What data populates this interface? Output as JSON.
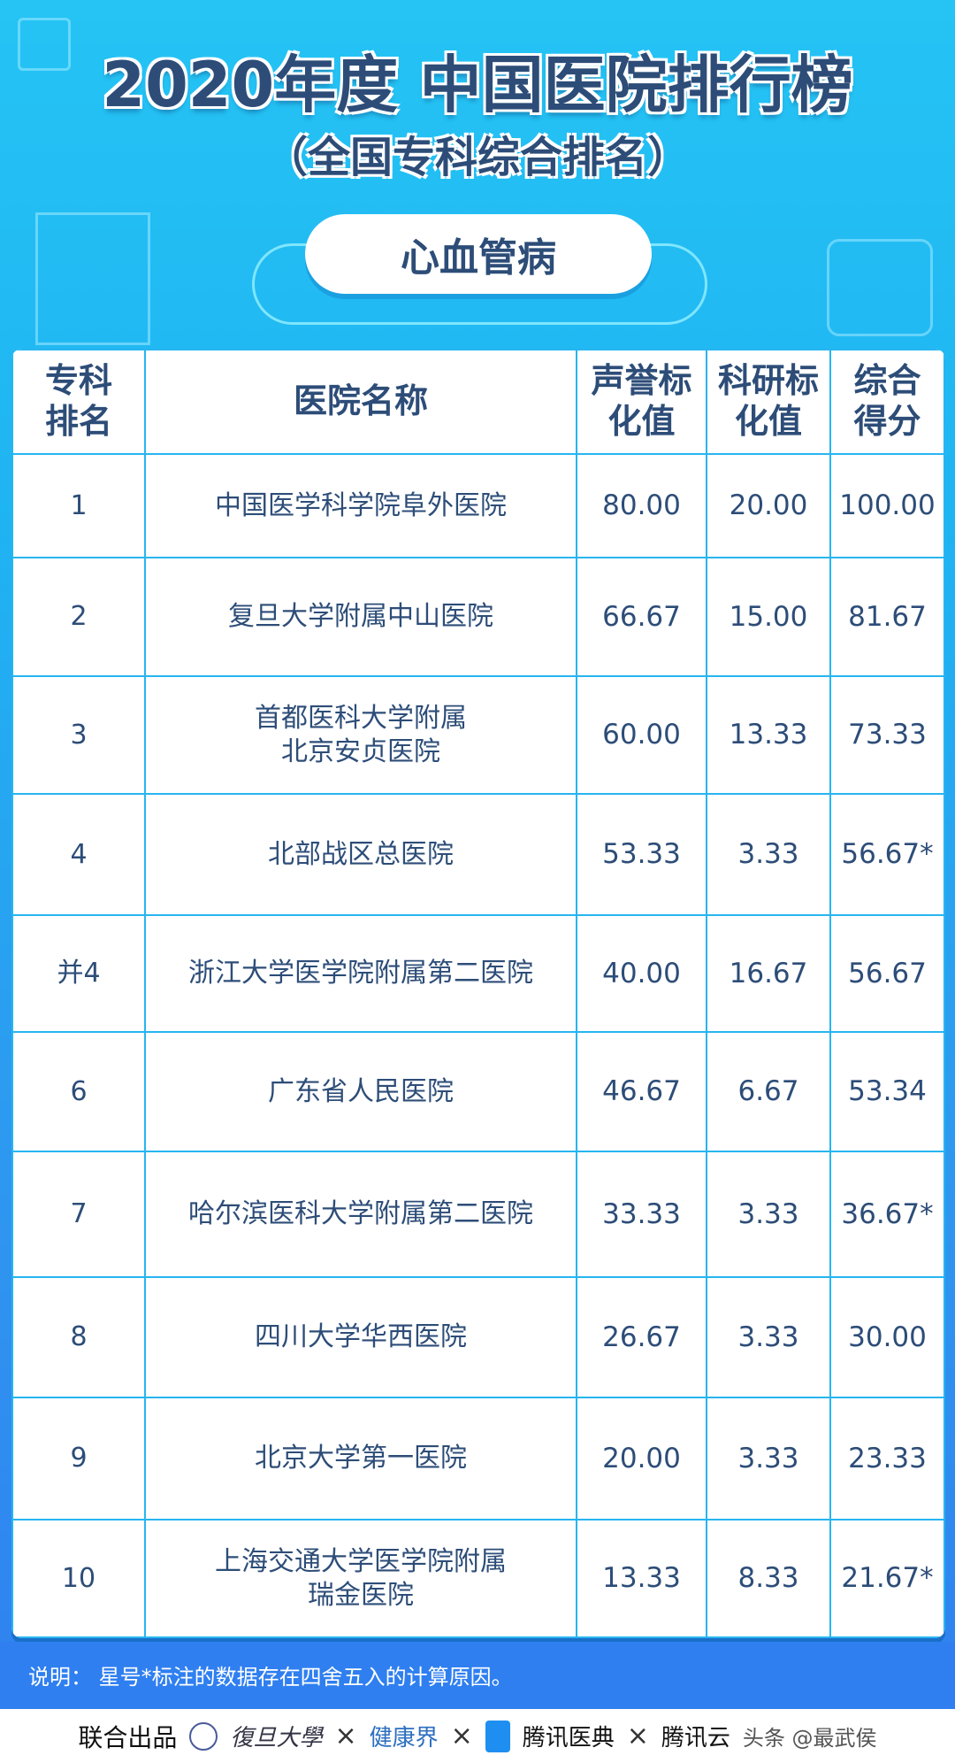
{
  "title": "2020年度 中国医院排行榜",
  "subtitle": "（全国专科综合排名）",
  "specialty": "心血管病",
  "table": {
    "headers": [
      "专科\n排名",
      "医院名称",
      "声誉标\n化值",
      "科研标\n化值",
      "综合\n得分"
    ],
    "rows": [
      [
        "1",
        "中国医学科学院阜外医院",
        "80.00",
        "20.00",
        "100.00"
      ],
      [
        "2",
        "复旦大学附属中山医院",
        "66.67",
        "15.00",
        "81.67"
      ],
      [
        "3",
        "首都医科大学附属\n北京安贞医院",
        "60.00",
        "13.33",
        "73.33"
      ],
      [
        "4",
        "北部战区总医院",
        "53.33",
        "3.33",
        "56.67*"
      ],
      [
        "并4",
        "浙江大学医学院附属第二医院",
        "40.00",
        "16.67",
        "56.67"
      ],
      [
        "6",
        "广东省人民医院",
        "46.67",
        "6.67",
        "53.34"
      ],
      [
        "7",
        "哈尔滨医科大学附属第二医院",
        "33.33",
        "3.33",
        "36.67*"
      ],
      [
        "8",
        "四川大学华西医院",
        "26.67",
        "3.33",
        "30.00"
      ],
      [
        "9",
        "北京大学第一医院",
        "20.00",
        "3.33",
        "23.33"
      ],
      [
        "10",
        "上海交通大学医学院附属\n瑞金医院",
        "13.33",
        "8.33",
        "21.67*"
      ]
    ]
  },
  "note": "说明：  星号*标注的数据存在四舍五入的计算原因。",
  "footer": {
    "label": "联合出品",
    "logos": [
      "復旦大學",
      "健康界",
      "腾讯医典",
      "腾讯云"
    ],
    "sep": "×",
    "watermark": "头条 @最武侯"
  },
  "colors": {
    "text": "#2d4d78",
    "border": "#27b5f0",
    "note_bg": "#2f7ff0"
  }
}
